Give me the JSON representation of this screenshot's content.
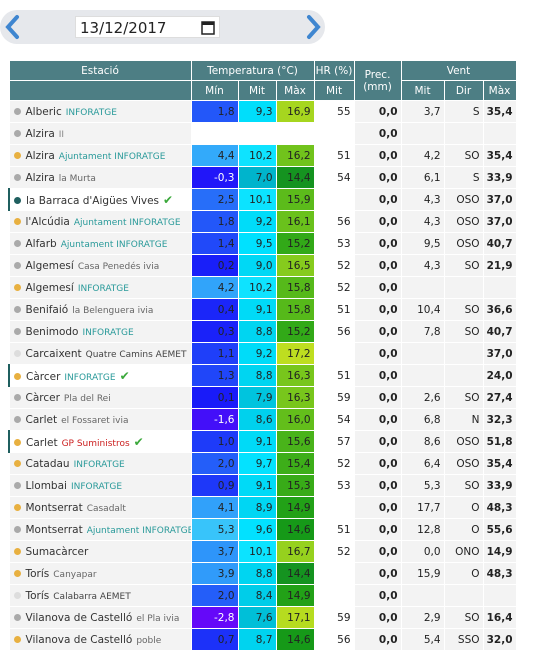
{
  "header": {
    "date": "13/12/2017"
  },
  "table": {
    "columns": {
      "station": "Estació",
      "temperature": "Temperatura (°C)",
      "humidity": "HR (%)",
      "precipitation": "Prec. (mm)",
      "wind": "Vent"
    },
    "subcolumns": [
      "Mín",
      "Mit",
      "Màx",
      "Mit",
      "Mit",
      "Dir",
      "Màx"
    ],
    "rows": [
      {
        "dot": "#aaaaaa",
        "name": "Alberic",
        "source": "INFORATGE",
        "source_color": "#2a9a9a",
        "temp": [
          "1,8",
          "9,3",
          "16,9"
        ],
        "hr": "55",
        "prec": "0,0",
        "wind": [
          "3,7",
          "S",
          "35,4"
        ]
      },
      {
        "dot": "#aaaaaa",
        "name": "Alzira",
        "source": "II",
        "source_color": "#888888",
        "temp": [
          null,
          null,
          null
        ],
        "hr": null,
        "prec": "0,0",
        "wind": [
          null,
          null,
          null
        ]
      },
      {
        "dot": "#e8b040",
        "name": "Alzira",
        "source": "Ajuntament INFORATGE",
        "source_color": "#2a9a9a",
        "temp": [
          "4,4",
          "10,2",
          "16,2"
        ],
        "hr": "51",
        "prec": "0,0",
        "wind": [
          "4,2",
          "SO",
          "35,4"
        ]
      },
      {
        "dot": "#aaaaaa",
        "name": "Alzira",
        "source": "la Murta",
        "source_color": "#666666",
        "temp": [
          "-0,3",
          "7,0",
          "14,4"
        ],
        "hr": "54",
        "prec": "0,0",
        "wind": [
          "6,1",
          "S",
          "33,9"
        ]
      },
      {
        "dot": "#1f5f5f",
        "name": "la Barraca d'Aigües Vives",
        "source": null,
        "source_color": "#666666",
        "featured": true,
        "checked": true,
        "temp": [
          "2,5",
          "10,1",
          "15,9"
        ],
        "hr": null,
        "prec": "0,0",
        "wind": [
          "4,3",
          "OSO",
          "37,0"
        ]
      },
      {
        "dot": "#e8b040",
        "name": "l'Alcúdia",
        "source": "Ajuntament INFORATGE",
        "source_color": "#2a9a9a",
        "temp": [
          "1,8",
          "9,2",
          "16,1"
        ],
        "hr": "56",
        "prec": "0,0",
        "wind": [
          "4,3",
          "OSO",
          "37,0"
        ]
      },
      {
        "dot": "#aaaaaa",
        "name": "Alfarb",
        "source": "Ajuntament INFORATGE",
        "source_color": "#2a9a9a",
        "temp": [
          "1,4",
          "9,5",
          "15,2"
        ],
        "hr": "53",
        "prec": "0,0",
        "wind": [
          "9,5",
          "OSO",
          "40,7"
        ]
      },
      {
        "dot": "#aaaaaa",
        "name": "Algemesí",
        "source": "Casa Penedés ivia",
        "source_color": "#666666",
        "temp": [
          "0,2",
          "9,0",
          "16,5"
        ],
        "hr": "52",
        "prec": "0,0",
        "wind": [
          "4,3",
          "SO",
          "21,9"
        ]
      },
      {
        "dot": "#e8b040",
        "name": "Algemesí",
        "source": "INFORATGE",
        "source_color": "#2a9a9a",
        "temp": [
          "4,2",
          "10,2",
          "15,8"
        ],
        "hr": "52",
        "prec": "0,0",
        "wind": [
          null,
          null,
          null
        ]
      },
      {
        "dot": "#aaaaaa",
        "name": "Benifaió",
        "source": "la Belenguera ivia",
        "source_color": "#666666",
        "temp": [
          "0,4",
          "9,1",
          "15,8"
        ],
        "hr": "51",
        "prec": "0,0",
        "wind": [
          "10,4",
          "SO",
          "36,6"
        ]
      },
      {
        "dot": "#aaaaaa",
        "name": "Benimodo",
        "source": "INFORATGE",
        "source_color": "#2a9a9a",
        "temp": [
          "0,3",
          "8,8",
          "15,2"
        ],
        "hr": "56",
        "prec": "0,0",
        "wind": [
          "7,8",
          "SO",
          "40,7"
        ]
      },
      {
        "dot": "#dddddd",
        "name": "Carcaixent",
        "source": "Quatre Camins AEMET",
        "source_color": "#444444",
        "temp": [
          "1,1",
          "9,2",
          "17,2"
        ],
        "hr": null,
        "prec": "0,0",
        "wind": [
          null,
          null,
          "37,0"
        ]
      },
      {
        "dot": "#e8b040",
        "name": "Càrcer",
        "source": "INFORATGE",
        "source_color": "#2a9a9a",
        "featured": true,
        "checked": true,
        "temp": [
          "1,3",
          "8,8",
          "16,3"
        ],
        "hr": "51",
        "prec": "0,0",
        "wind": [
          null,
          null,
          "24,0"
        ]
      },
      {
        "dot": "#aaaaaa",
        "name": "Càrcer",
        "source": "Pla del Rei",
        "source_color": "#666666",
        "temp": [
          "0,1",
          "7,9",
          "16,3"
        ],
        "hr": "59",
        "prec": "0,0",
        "wind": [
          "2,6",
          "SO",
          "27,4"
        ]
      },
      {
        "dot": "#aaaaaa",
        "name": "Carlet",
        "source": "el Fossaret ivia",
        "source_color": "#666666",
        "temp": [
          "-1,6",
          "8,6",
          "16,0"
        ],
        "hr": "54",
        "prec": "0,0",
        "wind": [
          "6,8",
          "N",
          "32,3"
        ]
      },
      {
        "dot": "#e8b040",
        "name": "Carlet",
        "source": "GP Suministros",
        "source_color": "#cc2020",
        "featured": true,
        "checked": true,
        "temp": [
          "1,0",
          "9,1",
          "15,6"
        ],
        "hr": "57",
        "prec": "0,0",
        "wind": [
          "8,6",
          "OSO",
          "51,8"
        ]
      },
      {
        "dot": "#e8b040",
        "name": "Catadau",
        "source": "INFORATGE",
        "source_color": "#2a9a9a",
        "temp": [
          "2,0",
          "9,7",
          "15,4"
        ],
        "hr": "52",
        "prec": "0,0",
        "wind": [
          "6,4",
          "OSO",
          "35,4"
        ]
      },
      {
        "dot": "#aaaaaa",
        "name": "Llombai",
        "source": "INFORATGE",
        "source_color": "#2a9a9a",
        "temp": [
          "0,9",
          "9,1",
          "15,3"
        ],
        "hr": "53",
        "prec": "0,0",
        "wind": [
          "5,3",
          "SO",
          "33,9"
        ]
      },
      {
        "dot": "#e8b040",
        "name": "Montserrat",
        "source": "Casadalt",
        "source_color": "#666666",
        "temp": [
          "4,1",
          "8,9",
          "14,9"
        ],
        "hr": null,
        "prec": "0,0",
        "wind": [
          "17,7",
          "O",
          "48,3"
        ]
      },
      {
        "dot": "#aaaaaa",
        "name": "Montserrat",
        "source": "Ajuntament INFORATGE",
        "source_color": "#2a9a9a",
        "temp": [
          "5,3",
          "9,6",
          "14,6"
        ],
        "hr": "51",
        "prec": "0,0",
        "wind": [
          "12,8",
          "O",
          "55,6"
        ]
      },
      {
        "dot": "#e8b040",
        "name": "Sumacàrcer",
        "source": null,
        "source_color": "#666666",
        "temp": [
          "3,7",
          "10,1",
          "16,7"
        ],
        "hr": "52",
        "prec": "0,0",
        "wind": [
          "0,0",
          "ONO",
          "14,9"
        ]
      },
      {
        "dot": "#e8b040",
        "name": "Torís",
        "source": "Canyapar",
        "source_color": "#666666",
        "temp": [
          "3,9",
          "8,8",
          "14,4"
        ],
        "hr": null,
        "prec": "0,0",
        "wind": [
          "15,9",
          "O",
          "48,3"
        ]
      },
      {
        "dot": "#dddddd",
        "name": "Torís",
        "source": "Calabarra AEMET",
        "source_color": "#444444",
        "temp": [
          "2,0",
          "8,4",
          "14,9"
        ],
        "hr": null,
        "prec": "0,0",
        "wind": [
          null,
          null,
          null
        ]
      },
      {
        "dot": "#aaaaaa",
        "name": "Vilanova de Castelló",
        "source": "el Pla ivia",
        "source_color": "#666666",
        "temp": [
          "-2,8",
          "7,6",
          "17,1"
        ],
        "hr": "59",
        "prec": "0,0",
        "wind": [
          "2,9",
          "SO",
          "16,4"
        ]
      },
      {
        "dot": "#e8b040",
        "name": "Vilanova de Castelló",
        "source": "poble",
        "source_color": "#666666",
        "temp": [
          "0,7",
          "8,7",
          "14,6"
        ],
        "hr": "56",
        "prec": "0,0",
        "wind": [
          "5,4",
          "SSO",
          "32,0"
        ]
      }
    ]
  }
}
